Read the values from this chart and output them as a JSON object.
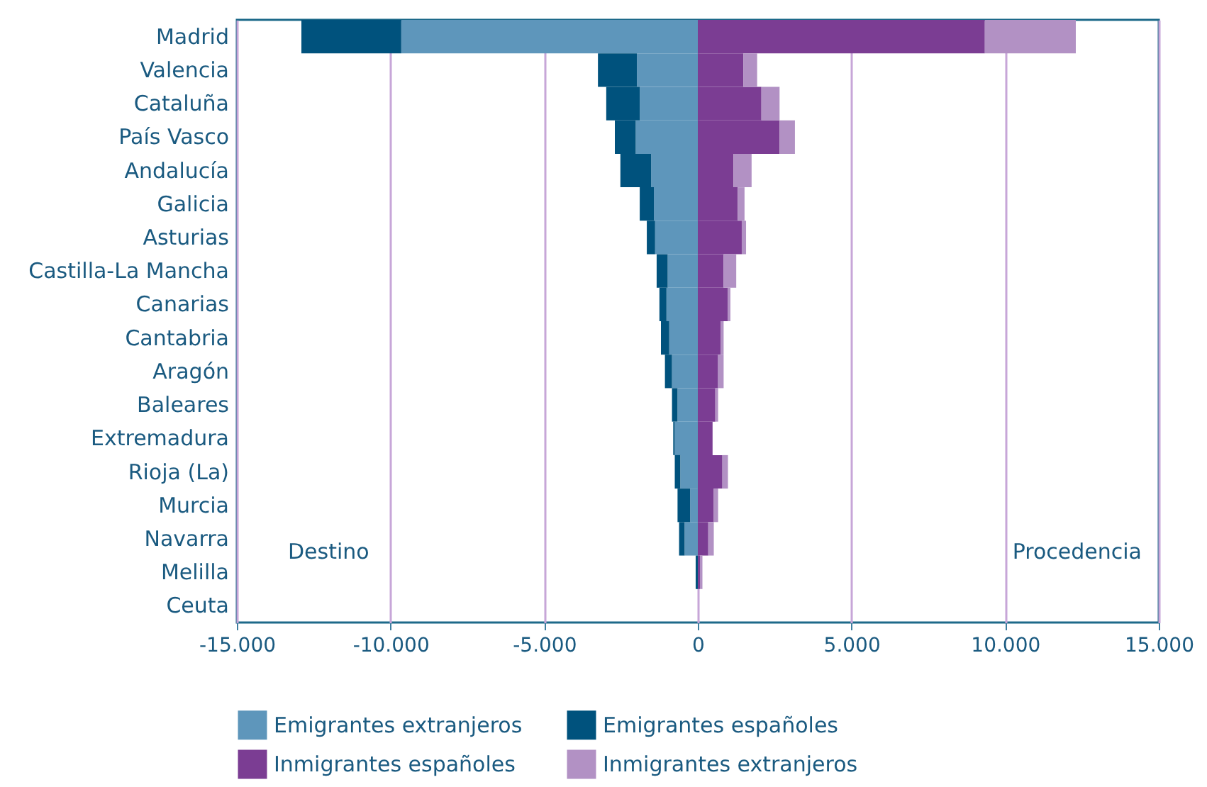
{
  "chart_data": {
    "type": "bar",
    "orientation": "horizontal",
    "stacked": true,
    "categories": [
      "Madrid",
      "Valencia",
      "Cataluña",
      "País Vasco",
      "Andalucía",
      "Galicia",
      "Asturias",
      "Castilla-La Mancha",
      "Canarias",
      "Cantabria",
      "Aragón",
      "Baleares",
      "Extremadura",
      "Rioja (La)",
      "Murcia",
      "Navarra",
      "Melilla",
      "Ceuta"
    ],
    "series": [
      {
        "name": "Emigrantes extranjeros",
        "color": "#5e96bb",
        "values": [
          -9650,
          -1980,
          -1890,
          -2020,
          -1520,
          -1430,
          -1390,
          -980,
          -1020,
          -930,
          -840,
          -660,
          -750,
          -570,
          -250,
          -430,
          null,
          null
        ]
      },
      {
        "name": "Emigrantes españoles",
        "color": "#00527d",
        "values": [
          -3250,
          -1270,
          -1090,
          -680,
          -1000,
          -460,
          -270,
          -360,
          -230,
          -270,
          -230,
          -180,
          -50,
          -180,
          -410,
          -180,
          -70,
          null
        ]
      },
      {
        "name": "Inmigrantes españoles",
        "color": "#7b3d93",
        "values": [
          9340,
          1480,
          2070,
          2660,
          1160,
          1300,
          1430,
          840,
          980,
          750,
          660,
          570,
          480,
          800,
          520,
          340,
          70,
          null
        ]
      },
      {
        "name": "Inmigrantes extranjeros",
        "color": "#b291c4",
        "values": [
          2960,
          450,
          590,
          500,
          590,
          220,
          140,
          410,
          80,
          90,
          180,
          90,
          null,
          180,
          140,
          180,
          80,
          null
        ]
      }
    ],
    "xlim": [
      -15000,
      15000
    ],
    "xticks": [
      {
        "value": -15000,
        "label": "-15.000"
      },
      {
        "value": -10000,
        "label": "-10.000"
      },
      {
        "value": -5000,
        "label": "-5.000"
      },
      0,
      {
        "value": 5000,
        "label": "5.000"
      },
      {
        "value": 10000,
        "label": "10.000"
      },
      {
        "value": 15000,
        "label": "15.000"
      }
    ],
    "grid": "x",
    "legend": "bottom",
    "annotations": [
      "Destino",
      "Procedencia"
    ]
  }
}
